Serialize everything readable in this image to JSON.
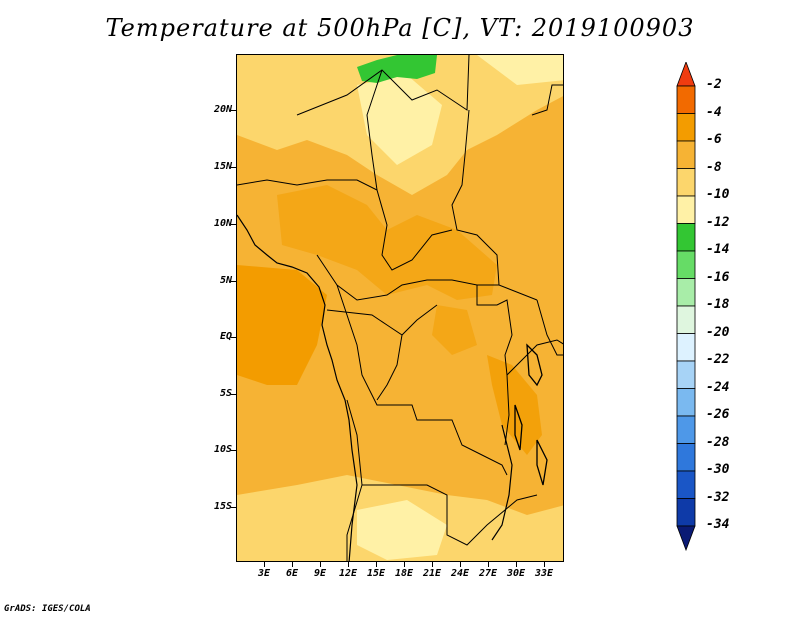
{
  "title": "Temperature at 500hPa [C], VT: 2019100903",
  "credit": "GrADS: IGES/COLA",
  "latitude_labels": [
    "20N",
    "15N",
    "10N",
    "5N",
    "EQ",
    "5S",
    "10S",
    "15S"
  ],
  "longitude_labels": [
    "3E",
    "6E",
    "9E",
    "12E",
    "15E",
    "18E",
    "21E",
    "24E",
    "27E",
    "30E",
    "33E"
  ],
  "colorbar": {
    "labels": [
      "-2",
      "-4",
      "-6",
      "-8",
      "-10",
      "-12",
      "-14",
      "-16",
      "-18",
      "-20",
      "-22",
      "-24",
      "-26",
      "-28",
      "-30",
      "-32",
      "-34"
    ],
    "colors": [
      "#f03c10",
      "#f26a00",
      "#f39c00",
      "#f6b334",
      "#fcd66c",
      "#fff1a6",
      "#33c633",
      "#66dc66",
      "#a8eda8",
      "#dff6df",
      "#ddf2ff",
      "#a7d3f6",
      "#7ab9f0",
      "#4e98e8",
      "#2f78dc",
      "#1a56c6",
      "#0e3aa8",
      "#0a1a74"
    ]
  },
  "map_colors": {
    "warmest": "#f39c00",
    "warm": "#f6b334",
    "mid": "#fcd66c",
    "cool": "#fff1a6",
    "green": "#33c633"
  }
}
